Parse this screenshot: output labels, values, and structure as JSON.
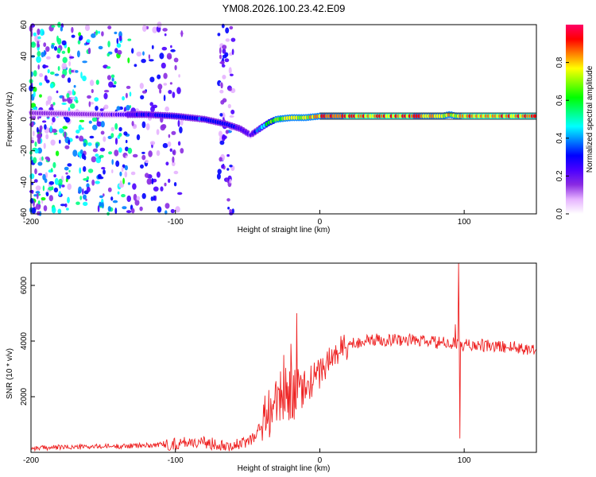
{
  "title": "YM08.2026.100.23.42.E09",
  "chart_data": [
    {
      "type": "heatmap",
      "title": "YM08.2026.100.23.42.E09",
      "xlabel": "Height of straight line (km)",
      "ylabel": "Frequency (Hz)",
      "xlim": [
        -200,
        150
      ],
      "ylim": [
        -60,
        60
      ],
      "xticks": [
        -200,
        -100,
        0,
        100
      ],
      "yticks": [
        -60,
        -40,
        -20,
        0,
        20,
        40,
        60
      ],
      "colorbar": {
        "label": "Normalized spectral amplitude",
        "range": [
          0,
          1
        ],
        "ticks": [
          "0.0",
          "0.2",
          "0.4",
          "0.6",
          "0.8"
        ],
        "colormap": [
          "#ffffff",
          "#e6b3ff",
          "#8a2be2",
          "#4b00ff",
          "#0000ff",
          "#0080ff",
          "#00ffff",
          "#00ff80",
          "#00ff00",
          "#80ff00",
          "#ffff00",
          "#ff8000",
          "#ff0000",
          "#ff0066"
        ]
      },
      "ridge": {
        "x": [
          -200,
          -150,
          -120,
          -100,
          -80,
          -65,
          -55,
          -48,
          -40,
          -35,
          -30,
          -20,
          -10,
          0,
          20,
          60,
          85,
          90,
          95,
          100,
          150
        ],
        "freq": [
          4,
          3,
          3,
          2,
          0,
          -3,
          -6,
          -10,
          -5,
          -2,
          0,
          1,
          1,
          2,
          2,
          2,
          2,
          3,
          2,
          2,
          2
        ],
        "amplitude": [
          0.15,
          0.2,
          0.3,
          0.35,
          0.35,
          0.35,
          0.3,
          0.25,
          0.5,
          0.7,
          0.8,
          0.8,
          0.85,
          0.9,
          0.95,
          0.95,
          0.9,
          0.85,
          0.9,
          0.95,
          0.95
        ]
      },
      "band_top_freq": 4,
      "band_bottom_freq": 0,
      "band_start_x": 0,
      "noise_region_x": [
        -200,
        -105
      ],
      "noise_stripe_x": [
        -70,
        -60
      ]
    },
    {
      "type": "line",
      "xlabel": "Height of straight line (km)",
      "ylabel": "SNR (10 * v/v)",
      "xlim": [
        -200,
        150
      ],
      "ylim": [
        0,
        6800
      ],
      "xticks": [
        -200,
        -100,
        0,
        100
      ],
      "yticks": [
        2000,
        4000,
        6000
      ],
      "color": "#ee2222",
      "series": [
        {
          "name": "SNR",
          "x": [
            -200,
            -180,
            -160,
            -140,
            -120,
            -110,
            -100,
            -95,
            -90,
            -85,
            -80,
            -75,
            -70,
            -65,
            -60,
            -55,
            -50,
            -45,
            -40,
            -35,
            -30,
            -25,
            -20,
            -15,
            -10,
            -5,
            0,
            5,
            10,
            15,
            20,
            25,
            30,
            40,
            50,
            60,
            70,
            80,
            90,
            95,
            100,
            110,
            120,
            130,
            140,
            150
          ],
          "y": [
            150,
            180,
            200,
            220,
            250,
            280,
            300,
            350,
            400,
            350,
            330,
            320,
            300,
            280,
            250,
            280,
            400,
            600,
            1000,
            1500,
            1800,
            2000,
            2200,
            2100,
            2300,
            2600,
            2900,
            3200,
            3500,
            3700,
            3850,
            3950,
            4000,
            4050,
            4050,
            4050,
            4000,
            3950,
            3900,
            3900,
            3850,
            3850,
            3800,
            3800,
            3750,
            3700
          ]
        }
      ],
      "spikes": [
        {
          "x": -16,
          "y": 5000
        },
        {
          "x": -20,
          "y": 3900
        },
        {
          "x": -25,
          "y": 3500
        },
        {
          "x": 96,
          "y": 6800
        },
        {
          "x": 97,
          "y": 500
        },
        {
          "x": 94,
          "y": 4600
        }
      ]
    }
  ]
}
